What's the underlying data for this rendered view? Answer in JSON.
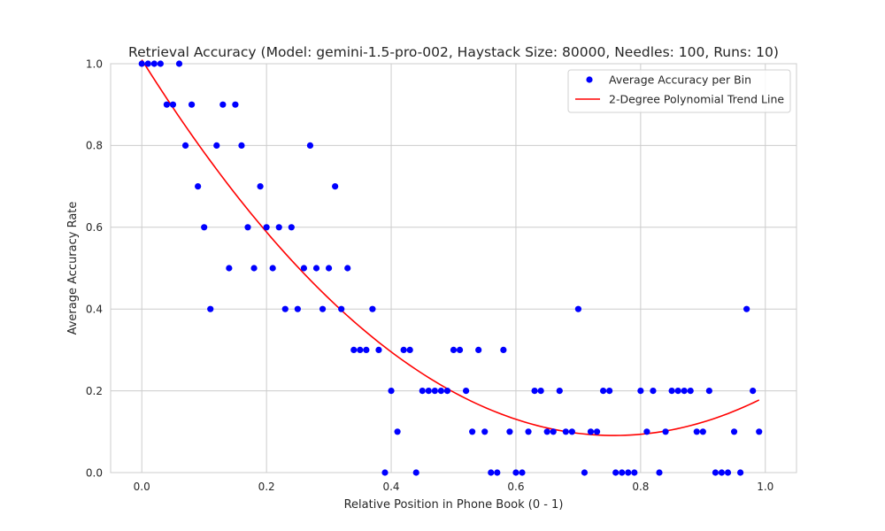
{
  "chart_data": {
    "type": "scatter",
    "title": "Retrieval Accuracy (Model: gemini-1.5-pro-002, Haystack Size: 80000, Needles: 100, Runs: 10)",
    "xlabel": "Relative Position in Phone Book (0 - 1)",
    "ylabel": "Average Accuracy Rate",
    "xlim": [
      -0.05,
      1.05
    ],
    "ylim": [
      0.0,
      1.0
    ],
    "xticks": [
      "0.0",
      "0.2",
      "0.4",
      "0.6",
      "0.8",
      "1.0"
    ],
    "yticks": [
      "0.0",
      "0.2",
      "0.4",
      "0.6",
      "0.8",
      "1.0"
    ],
    "grid": true,
    "legend_position": "top-right",
    "series": [
      {
        "name": "Average Accuracy per Bin",
        "kind": "scatter",
        "color": "#0000ff",
        "x": [
          0.0,
          0.01,
          0.02,
          0.03,
          0.04,
          0.05,
          0.06,
          0.07,
          0.08,
          0.09,
          0.1,
          0.11,
          0.12,
          0.13,
          0.14,
          0.15,
          0.16,
          0.17,
          0.18,
          0.19,
          0.2,
          0.21,
          0.22,
          0.23,
          0.24,
          0.25,
          0.26,
          0.27,
          0.28,
          0.29,
          0.3,
          0.31,
          0.32,
          0.33,
          0.34,
          0.35,
          0.36,
          0.37,
          0.38,
          0.39,
          0.4,
          0.41,
          0.42,
          0.43,
          0.44,
          0.45,
          0.46,
          0.47,
          0.48,
          0.49,
          0.5,
          0.51,
          0.52,
          0.53,
          0.54,
          0.55,
          0.56,
          0.57,
          0.58,
          0.59,
          0.6,
          0.61,
          0.62,
          0.63,
          0.64,
          0.65,
          0.66,
          0.67,
          0.68,
          0.69,
          0.7,
          0.71,
          0.72,
          0.73,
          0.74,
          0.75,
          0.76,
          0.77,
          0.78,
          0.79,
          0.8,
          0.81,
          0.82,
          0.83,
          0.84,
          0.85,
          0.86,
          0.87,
          0.88,
          0.89,
          0.9,
          0.91,
          0.92,
          0.93,
          0.94,
          0.95,
          0.96,
          0.97,
          0.98,
          0.99
        ],
        "y": [
          1.0,
          1.0,
          1.0,
          1.0,
          0.9,
          0.9,
          1.0,
          0.8,
          0.9,
          0.7,
          0.6,
          0.4,
          0.8,
          0.9,
          0.5,
          0.9,
          0.8,
          0.6,
          0.5,
          0.7,
          0.6,
          0.5,
          0.6,
          0.4,
          0.6,
          0.4,
          0.5,
          0.8,
          0.5,
          0.4,
          0.5,
          0.7,
          0.4,
          0.5,
          0.3,
          0.3,
          0.3,
          0.4,
          0.3,
          0.0,
          0.2,
          0.1,
          0.3,
          0.3,
          0.0,
          0.2,
          0.2,
          0.2,
          0.2,
          0.2,
          0.3,
          0.3,
          0.2,
          0.1,
          0.3,
          0.1,
          0.0,
          0.0,
          0.3,
          0.1,
          0.0,
          0.0,
          0.1,
          0.2,
          0.2,
          0.1,
          0.1,
          0.2,
          0.1,
          0.1,
          0.4,
          0.0,
          0.1,
          0.1,
          0.2,
          0.2,
          0.0,
          0.0,
          0.0,
          0.0,
          0.2,
          0.1,
          0.2,
          0.0,
          0.1,
          0.2,
          0.2,
          0.2,
          0.2,
          0.1,
          0.1,
          0.2,
          0.0,
          0.0,
          0.0,
          0.1,
          0.0,
          0.4,
          0.2,
          0.1
        ]
      },
      {
        "name": "2-Degree Polynomial Trend Line",
        "kind": "line",
        "color": "#ff0000",
        "polynomial": {
          "a": 1.6027,
          "b": -2.4272,
          "c": 1.0097
        },
        "x_range": [
          0.0,
          0.99
        ]
      }
    ]
  }
}
